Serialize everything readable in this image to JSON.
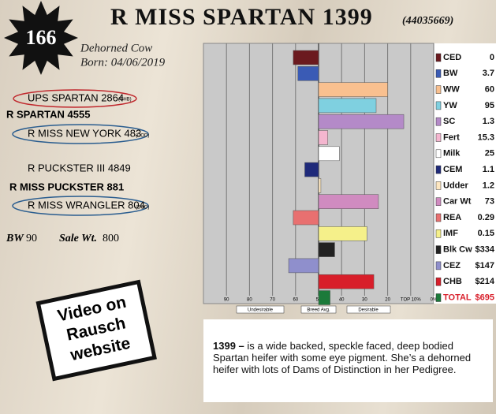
{
  "header": {
    "lot": "166",
    "title": "R MISS SPARTAN 1399",
    "registration": "(44035669)",
    "sex": "Dehorned Cow",
    "born": "Born: 04/06/2019"
  },
  "pedigree": {
    "sire": "UPS SPARTAN 2864",
    "sire_tag": "(CHB)",
    "sire_sire": "R SPARTAN 4555",
    "sire_dam": "R MISS NEW YORK 483",
    "sire_dam_tag": "(DOD)",
    "dam_sire": "R PUCKSTER III 4849",
    "dam": "R MISS PUCKSTER 881",
    "dam_dam": "R MISS WRANGLER 804",
    "dam_dam_tag": "(DOD)"
  },
  "stats": {
    "bw_label": "BW",
    "bw": "90",
    "sale_wt_label": "Sale Wt.",
    "sale_wt": "800"
  },
  "video": {
    "text": "Video on Rausch website"
  },
  "chart_data": {
    "type": "bar",
    "orientation": "horizontal",
    "categories": [
      "CED",
      "BW",
      "WW",
      "YW",
      "SC",
      "Fert",
      "Milk",
      "CEM",
      "Udder",
      "Car Wt",
      "REA",
      "IMF",
      "Blk Cw",
      "CEZ",
      "CHB",
      "TOTAL"
    ],
    "epd_labels": [
      "0",
      "3.7",
      "60",
      "95",
      "1.3",
      "15.3",
      "25",
      "1.1",
      "1.2",
      "73",
      "0.29",
      "0.15",
      "$334",
      "$147",
      "$214",
      "$695"
    ],
    "values": [
      61,
      59,
      20,
      25,
      13,
      46,
      41,
      56,
      49,
      24,
      61,
      29,
      43,
      63,
      26,
      45
    ],
    "colors": [
      "#6b1a1f",
      "#3a5bb5",
      "#f9c08f",
      "#7fd0e0",
      "#b48ac8",
      "#f4b6cf",
      "#ffffff",
      "#1f2a7a",
      "#fde6c0",
      "#d08bc0",
      "#e87070",
      "#f5f08a",
      "#222222",
      "#8f8fcc",
      "#d81e2a",
      "#1b7a3a"
    ],
    "xlim": [
      100,
      0
    ],
    "xticks": [
      90,
      80,
      70,
      60,
      50,
      40,
      30,
      20,
      {
        "value": 10,
        "label": "TOP 10%"
      },
      {
        "value": 0,
        "label": "0%"
      }
    ],
    "baseline": {
      "value": 50,
      "label": "Breed Avg."
    },
    "left_annotation": "Undesirable",
    "right_annotation": "Desirable",
    "grid": true
  },
  "description": {
    "lead": "1399 –",
    "text": "is a wide backed, speckle faced, deep bodied Spartan heifer with some eye pigment. She’s a dehorned heifer with lots of Dams of Distinction in her Pedigree."
  }
}
